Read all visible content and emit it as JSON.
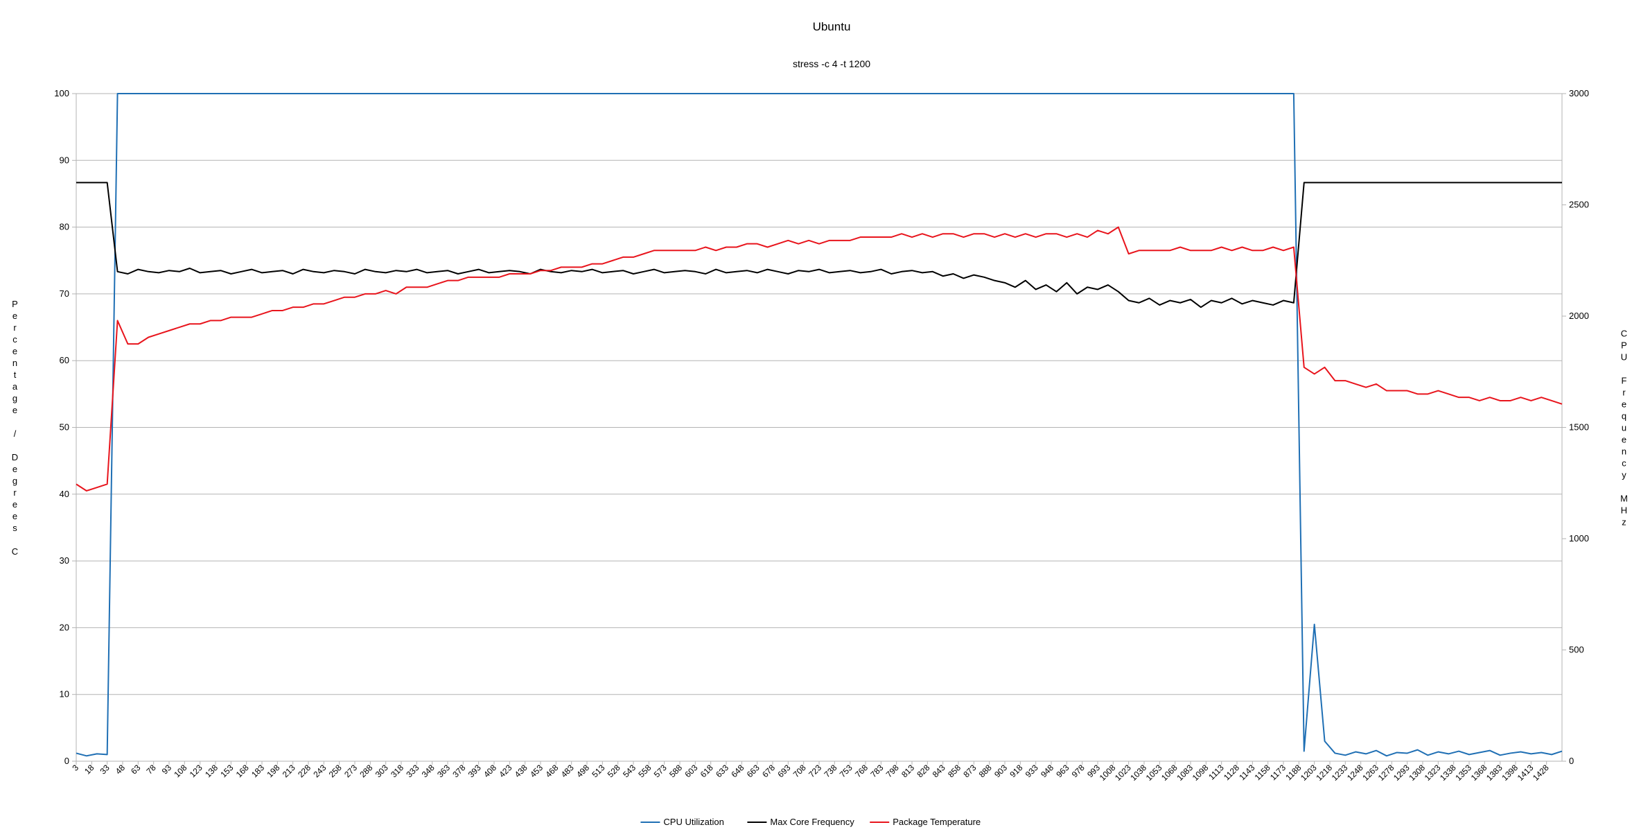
{
  "chart_data": {
    "type": "line",
    "title": "Ubuntu",
    "subtitle": "stress -c 4 -t 1200",
    "y_label": "Percentage / Degrees C",
    "y2_label": "CPU Frequency MHz",
    "x": [
      3,
      13,
      23,
      33,
      43,
      53,
      63,
      73,
      83,
      93,
      103,
      113,
      123,
      133,
      143,
      153,
      163,
      173,
      183,
      193,
      203,
      213,
      223,
      233,
      243,
      253,
      263,
      273,
      283,
      293,
      303,
      313,
      323,
      333,
      343,
      353,
      363,
      373,
      383,
      393,
      403,
      413,
      423,
      433,
      443,
      453,
      463,
      473,
      483,
      493,
      503,
      513,
      523,
      533,
      543,
      553,
      563,
      573,
      583,
      593,
      603,
      613,
      623,
      633,
      643,
      653,
      663,
      673,
      683,
      693,
      703,
      713,
      723,
      733,
      743,
      753,
      763,
      773,
      783,
      793,
      803,
      813,
      823,
      833,
      843,
      853,
      863,
      873,
      883,
      893,
      903,
      913,
      923,
      933,
      943,
      953,
      963,
      973,
      983,
      993,
      1003,
      1013,
      1023,
      1033,
      1043,
      1053,
      1063,
      1073,
      1083,
      1093,
      1103,
      1113,
      1123,
      1133,
      1143,
      1153,
      1163,
      1173,
      1183,
      1193,
      1203,
      1213,
      1223,
      1233,
      1243,
      1253,
      1263,
      1273,
      1283,
      1293,
      1303,
      1313,
      1323,
      1333,
      1343,
      1353,
      1363,
      1373,
      1383,
      1393,
      1403,
      1413,
      1423,
      1433,
      1443
    ],
    "xlim": [
      3,
      1443
    ],
    "xticks": [
      3,
      18,
      33,
      48,
      63,
      78,
      93,
      108,
      123,
      138,
      153,
      168,
      183,
      198,
      213,
      228,
      243,
      258,
      273,
      288,
      303,
      318,
      333,
      348,
      363,
      378,
      393,
      408,
      423,
      438,
      453,
      468,
      483,
      498,
      513,
      528,
      543,
      558,
      573,
      588,
      603,
      618,
      633,
      648,
      663,
      678,
      693,
      708,
      723,
      738,
      753,
      768,
      783,
      798,
      813,
      828,
      843,
      858,
      873,
      888,
      903,
      918,
      933,
      948,
      963,
      978,
      993,
      1008,
      1023,
      1038,
      1053,
      1068,
      1083,
      1098,
      1113,
      1128,
      1143,
      1158,
      1173,
      1188,
      1203,
      1218,
      1233,
      1248,
      1263,
      1278,
      1293,
      1308,
      1323,
      1338,
      1353,
      1368,
      1383,
      1398,
      1413,
      1428
    ],
    "ylim": [
      0,
      100
    ],
    "yticks": [
      0,
      10,
      20,
      30,
      40,
      50,
      60,
      70,
      80,
      90,
      100
    ],
    "y2lim": [
      0,
      3000
    ],
    "y2ticks": [
      0,
      500,
      1000,
      1500,
      2000,
      2500,
      3000
    ],
    "grid": true,
    "legend": "bottom",
    "series": [
      {
        "name": "CPU Utilization",
        "color": "#1f6fb4",
        "values": [
          1.2,
          0.8,
          1.1,
          1.0,
          100,
          100,
          100,
          100,
          100,
          100,
          100,
          100,
          100,
          100,
          100,
          100,
          100,
          100,
          100,
          100,
          100,
          100,
          100,
          100,
          100,
          100,
          100,
          100,
          100,
          100,
          100,
          100,
          100,
          100,
          100,
          100,
          100,
          100,
          100,
          100,
          100,
          100,
          100,
          100,
          100,
          100,
          100,
          100,
          100,
          100,
          100,
          100,
          100,
          100,
          100,
          100,
          100,
          100,
          100,
          100,
          100,
          100,
          100,
          100,
          100,
          100,
          100,
          100,
          100,
          100,
          100,
          100,
          100,
          100,
          100,
          100,
          100,
          100,
          100,
          100,
          100,
          100,
          100,
          100,
          100,
          100,
          100,
          100,
          100,
          100,
          100,
          100,
          100,
          100,
          100,
          100,
          100,
          100,
          100,
          100,
          100,
          100,
          100,
          100,
          100,
          100,
          100,
          100,
          100,
          100,
          100,
          100,
          100,
          100,
          100,
          100,
          100,
          100,
          100,
          1.5,
          20.5,
          3,
          1.2,
          0.9,
          1.4,
          1.1,
          1.6,
          0.8,
          1.3,
          1.2,
          1.7,
          0.9,
          1.4,
          1.1,
          1.5,
          1.0,
          1.3,
          1.6,
          0.9,
          1.2,
          1.4,
          1.1,
          1.3,
          1.0,
          1.5
        ]
      },
      {
        "name": "Max Core Frequency",
        "color": "#000000",
        "axis": "y2",
        "values": [
          2600,
          2600,
          2600,
          2600,
          2200,
          2190,
          2210,
          2200,
          2195,
          2205,
          2200,
          2215,
          2195,
          2200,
          2205,
          2190,
          2200,
          2210,
          2195,
          2200,
          2205,
          2190,
          2210,
          2200,
          2195,
          2205,
          2200,
          2190,
          2210,
          2200,
          2195,
          2205,
          2200,
          2210,
          2195,
          2200,
          2205,
          2190,
          2200,
          2210,
          2195,
          2200,
          2205,
          2200,
          2190,
          2210,
          2200,
          2195,
          2205,
          2200,
          2210,
          2195,
          2200,
          2205,
          2190,
          2200,
          2210,
          2195,
          2200,
          2205,
          2200,
          2190,
          2210,
          2195,
          2200,
          2205,
          2195,
          2210,
          2200,
          2190,
          2205,
          2200,
          2210,
          2195,
          2200,
          2205,
          2195,
          2200,
          2210,
          2190,
          2200,
          2205,
          2195,
          2200,
          2180,
          2190,
          2170,
          2185,
          2175,
          2160,
          2150,
          2130,
          2160,
          2120,
          2140,
          2110,
          2150,
          2100,
          2130,
          2120,
          2140,
          2110,
          2070,
          2060,
          2080,
          2050,
          2070,
          2060,
          2075,
          2040,
          2070,
          2060,
          2080,
          2055,
          2070,
          2060,
          2050,
          2070,
          2060,
          2600,
          2600,
          2600,
          2600,
          2600,
          2600,
          2600,
          2600,
          2600,
          2600,
          2600,
          2600,
          2600,
          2600,
          2600,
          2600,
          2600,
          2600,
          2600,
          2600,
          2600,
          2600,
          2600,
          2600,
          2600,
          2600
        ]
      },
      {
        "name": "Package Temperature",
        "color": "#e8141c",
        "values": [
          41.5,
          40.5,
          41,
          41.5,
          66,
          62.5,
          62.5,
          63.5,
          64,
          64.5,
          65,
          65.5,
          65.5,
          66,
          66,
          66.5,
          66.5,
          66.5,
          67,
          67.5,
          67.5,
          68,
          68,
          68.5,
          68.5,
          69,
          69.5,
          69.5,
          70,
          70,
          70.5,
          70,
          71,
          71,
          71,
          71.5,
          72,
          72,
          72.5,
          72.5,
          72.5,
          72.5,
          73,
          73,
          73,
          73.5,
          73.5,
          74,
          74,
          74,
          74.5,
          74.5,
          75,
          75.5,
          75.5,
          76,
          76.5,
          76.5,
          76.5,
          76.5,
          76.5,
          77,
          76.5,
          77,
          77,
          77.5,
          77.5,
          77,
          77.5,
          78,
          77.5,
          78,
          77.5,
          78,
          78,
          78,
          78.5,
          78.5,
          78.5,
          78.5,
          79,
          78.5,
          79,
          78.5,
          79,
          79,
          78.5,
          79,
          79,
          78.5,
          79,
          78.5,
          79,
          78.5,
          79,
          79,
          78.5,
          79,
          78.5,
          79.5,
          79,
          80,
          76,
          76.5,
          76.5,
          76.5,
          76.5,
          77,
          76.5,
          76.5,
          76.5,
          77,
          76.5,
          77,
          76.5,
          76.5,
          77,
          76.5,
          77,
          59,
          58,
          59,
          57,
          57,
          56.5,
          56,
          56.5,
          55.5,
          55.5,
          55.5,
          55,
          55,
          55.5,
          55,
          54.5,
          54.5,
          54,
          54.5,
          54,
          54,
          54.5,
          54,
          54.5,
          54,
          53.5
        ]
      }
    ]
  }
}
